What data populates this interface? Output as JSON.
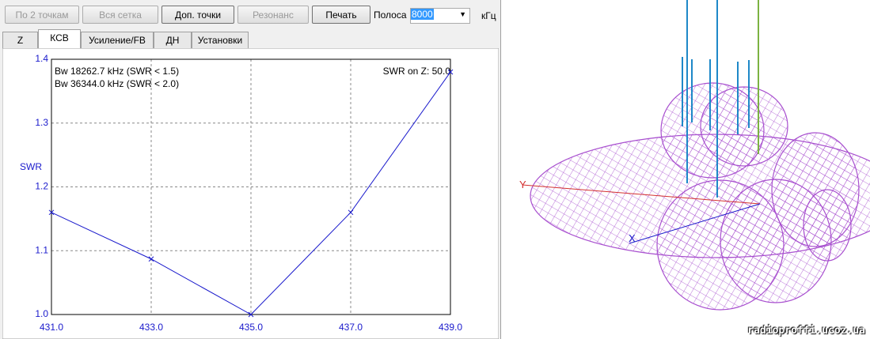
{
  "toolbar": {
    "buttons": [
      "По 2 точкам",
      "Вся сетка",
      "Доп. точки",
      "Резонанс",
      "Печать"
    ],
    "band_label": "Полоса",
    "band_value": "8000",
    "band_unit": "кГц"
  },
  "tabs": [
    "Z",
    "КСВ",
    "Усиление/FB",
    "ДН",
    "Установки"
  ],
  "chart_data": {
    "type": "line",
    "y_label": "SWR",
    "annotations": [
      "Bw 18262.7 kHz (SWR < 1.5)",
      "Bw 36344.0 kHz (SWR < 2.0)",
      "SWR on Z: 50.0"
    ],
    "x": [
      431,
      433,
      435,
      437,
      439
    ],
    "values": [
      1.16,
      1.087,
      1.0,
      1.16,
      1.38
    ],
    "color": "#1a1acc",
    "xlim": [
      431,
      439
    ],
    "xticks": [
      {
        "value": 431,
        "label": "431.0"
      },
      {
        "value": 433,
        "label": "433.0"
      },
      {
        "value": 435,
        "label": "435.0"
      },
      {
        "value": 437,
        "label": "437.0"
      },
      {
        "value": 439,
        "label": "439.0"
      }
    ],
    "ylim": [
      1.0,
      1.4
    ],
    "yticks": [
      {
        "value": 1.0,
        "label": "1.0"
      },
      1.1,
      1.2,
      1.3,
      1.4
    ],
    "grid": true
  },
  "pattern": {
    "axis_y": "Y",
    "axis_x": "X"
  },
  "watermark": "radioproffi.ucoz.ua"
}
